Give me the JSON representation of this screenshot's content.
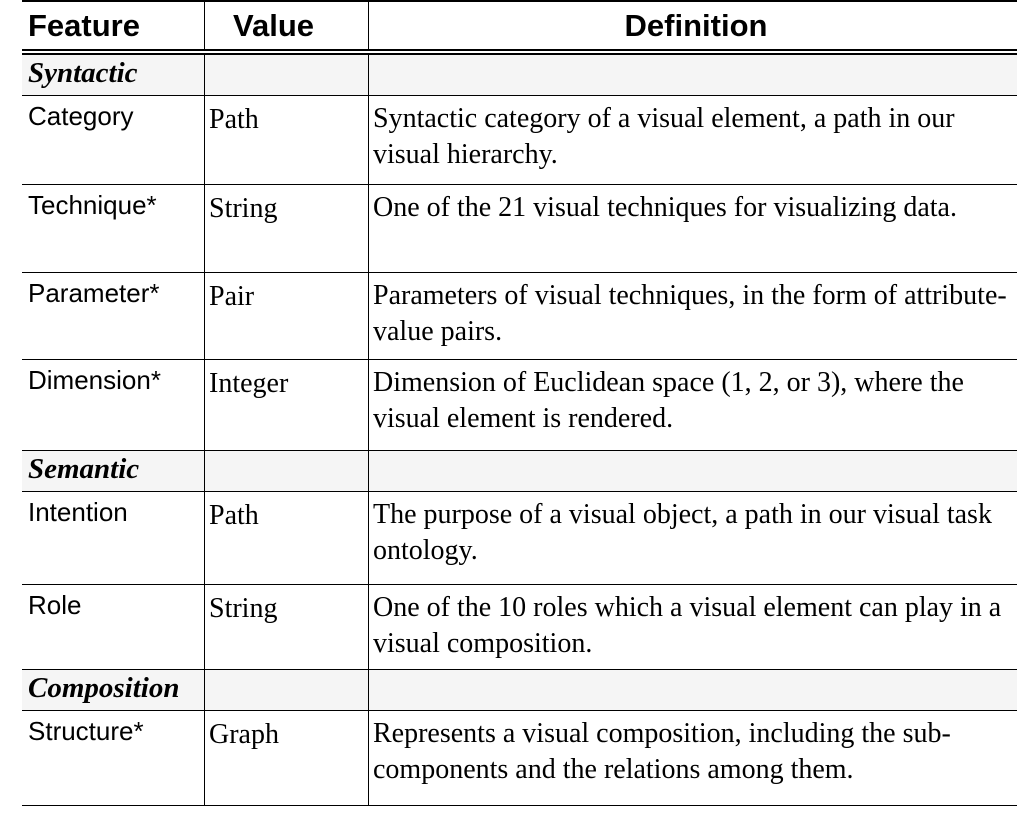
{
  "header": {
    "feature": "Feature",
    "value": "Value",
    "definition": "Definition"
  },
  "sections": {
    "syntactic": "Syntactic",
    "semantic": "Semantic",
    "composition": "Composition"
  },
  "rows": [
    {
      "feature": "Category",
      "value": "Path",
      "definition": "Syntactic category of a visual element, a path in our visual hierarchy."
    },
    {
      "feature": "Technique*",
      "value": "String",
      "definition": "One of the 21 visual techniques for visualizing data."
    },
    {
      "feature": "Parameter*",
      "value": "Pair",
      "definition": "Parameters of visual techniques, in the form of attribute-value pairs."
    },
    {
      "feature": "Dimension*",
      "value": "Integer",
      "definition": "Dimension of Euclidean space (1, 2, or 3), where the visual element is rendered."
    },
    {
      "feature": "Intention",
      "value": "Path",
      "definition": "The purpose of a visual object, a path in our visual task ontology."
    },
    {
      "feature": "Role",
      "value": "String",
      "definition": "One of the 10 roles which a visual element can play in a visual composition."
    },
    {
      "feature": "Structure*",
      "value": "Graph",
      "definition": "Represents a visual composition, including the sub-components and the relations among them."
    }
  ]
}
